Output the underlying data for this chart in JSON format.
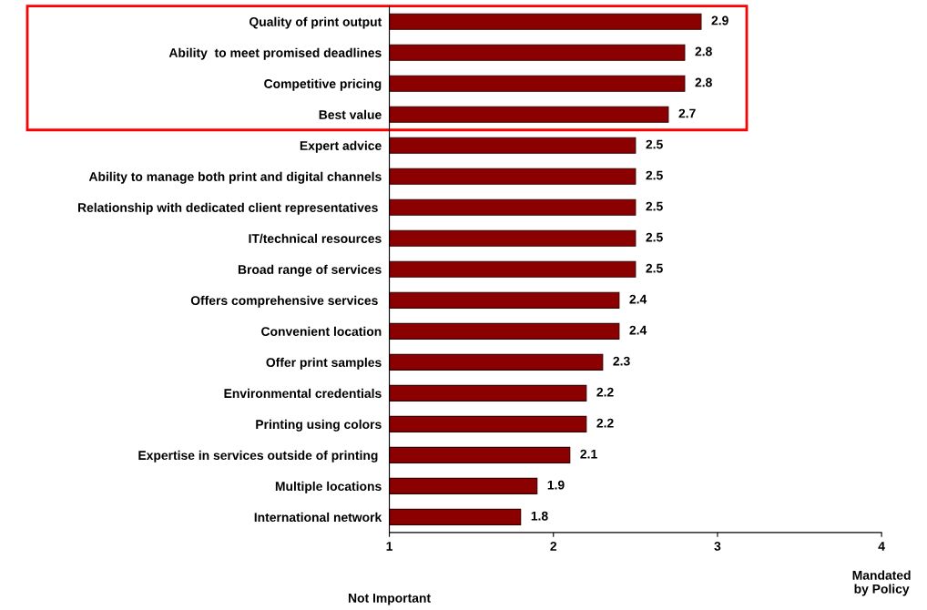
{
  "chart_data": {
    "type": "bar",
    "orientation": "horizontal",
    "categories": [
      "Quality of print output",
      "Ability  to meet promised deadlines",
      "Competitive pricing",
      "Best value",
      "Expert advice",
      "Ability to manage both print and digital channels",
      "Relationship with dedicated client representatives ",
      "IT/technical resources",
      "Broad range of services",
      "Offers comprehensive services ",
      "Convenient location",
      "Offer print samples",
      "Environmental credentials",
      "Printing using colors",
      "Expertise in services outside of printing ",
      "Multiple locations",
      "International network"
    ],
    "values": [
      2.9,
      2.8,
      2.8,
      2.7,
      2.5,
      2.5,
      2.5,
      2.5,
      2.5,
      2.4,
      2.4,
      2.3,
      2.2,
      2.2,
      2.1,
      1.9,
      1.8
    ],
    "color": "#8b0000",
    "data_labels": true,
    "xlim": [
      1,
      4
    ],
    "xticks": [
      1,
      2,
      3,
      4
    ],
    "grid": false,
    "annotations": [
      "Not Important",
      "Mandated\nby Policy"
    ]
  }
}
